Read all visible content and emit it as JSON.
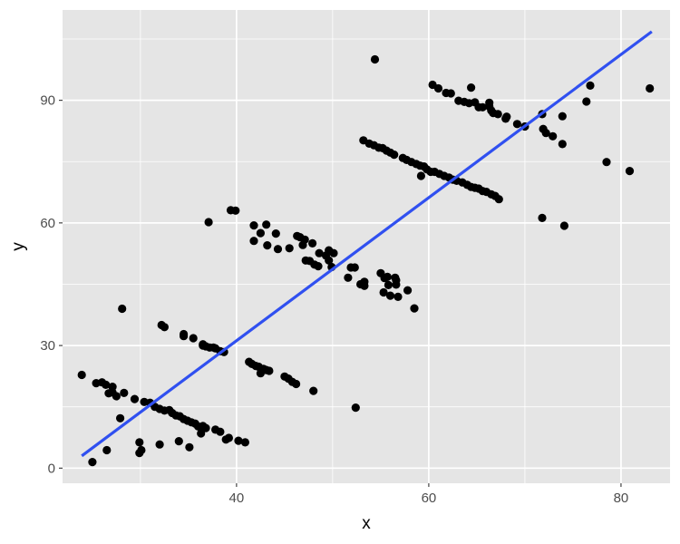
{
  "chart_data": {
    "type": "scatter",
    "title": "",
    "xlabel": "x",
    "ylabel": "y",
    "xlim": [
      21.9,
      85.1
    ],
    "ylim": [
      -3.7,
      112.1
    ],
    "x_ticks": [
      40,
      60,
      80
    ],
    "y_ticks": [
      0,
      30,
      60,
      90
    ],
    "x_minor_ticks": [
      30,
      50,
      70
    ],
    "y_minor_ticks": [
      15,
      45,
      75,
      105
    ],
    "grid": true,
    "background": "#e5e5e5",
    "grid_color": "#ffffff",
    "point_color": "#000000",
    "line_color": "#3050f0",
    "fit_line": {
      "x": [
        23.9,
        83.2
      ],
      "y": [
        3.0,
        106.8
      ]
    },
    "series": [
      {
        "points": [
          [
            23.9,
            22.8
          ],
          [
            25.0,
            1.5
          ],
          [
            25.4,
            20.8
          ],
          [
            26.0,
            21.0
          ],
          [
            26.4,
            20.4
          ],
          [
            26.7,
            18.3
          ],
          [
            27.1,
            19.9
          ],
          [
            27.1,
            18.5
          ],
          [
            27.5,
            17.6
          ],
          [
            27.9,
            12.2
          ],
          [
            28.3,
            18.4
          ],
          [
            26.5,
            4.4
          ],
          [
            28.1,
            39.0
          ],
          [
            29.4,
            16.9
          ],
          [
            29.9,
            6.3
          ],
          [
            29.9,
            3.7
          ],
          [
            30.1,
            4.4
          ],
          [
            30.4,
            16.2
          ],
          [
            31.0,
            16.0
          ],
          [
            31.5,
            15.0
          ],
          [
            32.0,
            5.8
          ],
          [
            32.2,
            35.0
          ],
          [
            32.5,
            34.5
          ],
          [
            32.0,
            14.5
          ],
          [
            32.5,
            14.1
          ],
          [
            33.0,
            14.2
          ],
          [
            33.3,
            13.5
          ],
          [
            33.7,
            12.9
          ],
          [
            34.0,
            6.6
          ],
          [
            34.1,
            12.7
          ],
          [
            34.5,
            12.0
          ],
          [
            34.5,
            32.8
          ],
          [
            34.5,
            32.3
          ],
          [
            34.9,
            11.6
          ],
          [
            35.1,
            5.1
          ],
          [
            35.3,
            11.2
          ],
          [
            35.5,
            31.8
          ],
          [
            35.7,
            10.9
          ],
          [
            36.0,
            10.2
          ],
          [
            36.3,
            8.5
          ],
          [
            36.5,
            30.3
          ],
          [
            36.5,
            30.0
          ],
          [
            36.5,
            10.3
          ],
          [
            36.8,
            29.8
          ],
          [
            36.8,
            9.8
          ],
          [
            37.2,
            29.5
          ],
          [
            37.6,
            29.5
          ],
          [
            37.8,
            9.4
          ],
          [
            37.8,
            29.3
          ],
          [
            38.3,
            28.6
          ],
          [
            38.3,
            8.9
          ],
          [
            38.7,
            28.4
          ],
          [
            38.9,
            7.0
          ],
          [
            39.2,
            7.4
          ],
          [
            37.1,
            60.2
          ],
          [
            39.4,
            63.1
          ],
          [
            39.9,
            63.0
          ],
          [
            40.2,
            6.7
          ],
          [
            40.9,
            6.3
          ],
          [
            41.3,
            26.0
          ],
          [
            41.6,
            25.5
          ],
          [
            42.0,
            25.0
          ],
          [
            42.3,
            24.8
          ],
          [
            42.5,
            23.2
          ],
          [
            42.8,
            24.3
          ],
          [
            43.1,
            24.0
          ],
          [
            43.4,
            23.8
          ],
          [
            41.8,
            59.4
          ],
          [
            42.5,
            57.5
          ],
          [
            43.1,
            59.6
          ],
          [
            43.2,
            54.5
          ],
          [
            41.8,
            55.6
          ],
          [
            44.1,
            57.4
          ],
          [
            44.3,
            53.6
          ],
          [
            45.0,
            22.4
          ],
          [
            45.4,
            21.9
          ],
          [
            45.8,
            21.1
          ],
          [
            46.2,
            20.6
          ],
          [
            45.5,
            53.8
          ],
          [
            46.3,
            56.8
          ],
          [
            46.6,
            56.5
          ],
          [
            46.9,
            54.6
          ],
          [
            47.1,
            55.9
          ],
          [
            47.2,
            50.8
          ],
          [
            47.6,
            50.7
          ],
          [
            47.9,
            55.0
          ],
          [
            48.1,
            49.8
          ],
          [
            48.5,
            49.4
          ],
          [
            48.6,
            52.6
          ],
          [
            48.0,
            18.9
          ],
          [
            49.3,
            52.0
          ],
          [
            49.6,
            50.8
          ],
          [
            49.6,
            53.3
          ],
          [
            49.9,
            49.2
          ],
          [
            50.1,
            52.6
          ],
          [
            52.4,
            14.8
          ],
          [
            51.6,
            46.6
          ],
          [
            51.9,
            49.1
          ],
          [
            52.3,
            49.1
          ],
          [
            52.9,
            45.0
          ],
          [
            53.3,
            45.6
          ],
          [
            53.3,
            44.6
          ],
          [
            53.2,
            80.2
          ],
          [
            53.8,
            79.4
          ],
          [
            54.3,
            79.0
          ],
          [
            54.4,
            100.0
          ],
          [
            54.8,
            78.4
          ],
          [
            55.2,
            78.3
          ],
          [
            55.0,
            47.7
          ],
          [
            55.4,
            46.5
          ],
          [
            55.6,
            77.7
          ],
          [
            55.7,
            46.8
          ],
          [
            55.8,
            44.8
          ],
          [
            55.3,
            43.0
          ],
          [
            56.0,
            77.2
          ],
          [
            56.0,
            42.2
          ],
          [
            56.4,
            76.7
          ],
          [
            56.5,
            46.6
          ],
          [
            56.6,
            46.0
          ],
          [
            56.6,
            44.9
          ],
          [
            56.8,
            41.9
          ],
          [
            57.3,
            75.9
          ],
          [
            57.7,
            75.4
          ],
          [
            57.8,
            43.5
          ],
          [
            58.2,
            74.9
          ],
          [
            58.5,
            39.1
          ],
          [
            58.7,
            74.4
          ],
          [
            59.1,
            74.0
          ],
          [
            59.2,
            71.5
          ],
          [
            59.5,
            73.8
          ],
          [
            59.8,
            73.1
          ],
          [
            60.2,
            72.5
          ],
          [
            60.4,
            93.8
          ],
          [
            60.6,
            72.5
          ],
          [
            61.0,
            92.9
          ],
          [
            61.1,
            72.0
          ],
          [
            61.6,
            71.5
          ],
          [
            61.8,
            91.8
          ],
          [
            62.1,
            71.1
          ],
          [
            62.3,
            91.7
          ],
          [
            62.5,
            70.6
          ],
          [
            62.9,
            70.3
          ],
          [
            63.1,
            89.9
          ],
          [
            63.5,
            69.9
          ],
          [
            63.7,
            89.6
          ],
          [
            64.0,
            69.3
          ],
          [
            64.2,
            89.3
          ],
          [
            64.4,
            93.1
          ],
          [
            64.4,
            68.8
          ],
          [
            64.8,
            89.5
          ],
          [
            64.8,
            68.6
          ],
          [
            65.2,
            68.4
          ],
          [
            65.2,
            88.3
          ],
          [
            65.6,
            88.3
          ],
          [
            65.6,
            67.8
          ],
          [
            66.0,
            67.6
          ],
          [
            66.3,
            89.4
          ],
          [
            66.3,
            88.5
          ],
          [
            66.5,
            87.5
          ],
          [
            66.5,
            67.0
          ],
          [
            66.7,
            86.9
          ],
          [
            66.9,
            66.6
          ],
          [
            67.2,
            86.6
          ],
          [
            67.3,
            65.8
          ],
          [
            68.0,
            85.5
          ],
          [
            68.1,
            86.0
          ],
          [
            69.2,
            84.2
          ],
          [
            70.0,
            83.6
          ],
          [
            71.8,
            86.6
          ],
          [
            71.8,
            61.2
          ],
          [
            71.9,
            83.0
          ],
          [
            72.2,
            82.0
          ],
          [
            72.9,
            81.2
          ],
          [
            73.9,
            86.1
          ],
          [
            73.9,
            79.3
          ],
          [
            74.1,
            59.3
          ],
          [
            76.4,
            89.7
          ],
          [
            76.8,
            93.6
          ],
          [
            78.5,
            74.9
          ],
          [
            80.9,
            72.7
          ],
          [
            83.0,
            92.9
          ]
        ]
      }
    ]
  }
}
